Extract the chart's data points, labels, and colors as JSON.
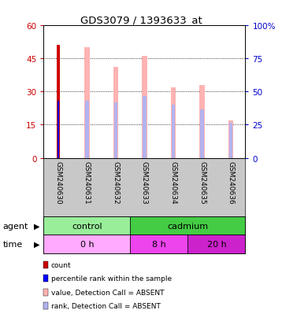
{
  "title": "GDS3079 / 1393633_at",
  "samples": [
    "GSM240630",
    "GSM240631",
    "GSM240632",
    "GSM240633",
    "GSM240634",
    "GSM240635",
    "GSM240636"
  ],
  "count_values": [
    51,
    0,
    0,
    0,
    0,
    0,
    0
  ],
  "percentile_rank_values": [
    26,
    0,
    0,
    0,
    0,
    0,
    0
  ],
  "value_absent": [
    0,
    50,
    41,
    46,
    32,
    33,
    17
  ],
  "rank_absent": [
    0,
    26,
    25,
    28,
    24,
    22,
    16
  ],
  "left_yticks": [
    0,
    15,
    30,
    45,
    60
  ],
  "right_yticks": [
    0,
    25,
    50,
    75,
    100
  ],
  "right_ylabel_color": "#0000cc",
  "left_ylabel_color": "#cc0000",
  "bar_color_count": "#cc0000",
  "bar_color_percentile": "#0000ff",
  "bar_color_value_absent": "#ffb3b3",
  "bar_color_rank_absent": "#b3b3ee",
  "agent_groups": [
    {
      "label": "control",
      "start": 0,
      "end": 3,
      "color": "#99ee99"
    },
    {
      "label": "cadmium",
      "start": 3,
      "end": 7,
      "color": "#44cc44"
    }
  ],
  "time_groups": [
    {
      "label": "0 h",
      "start": 0,
      "end": 3,
      "color": "#ffaaff"
    },
    {
      "label": "8 h",
      "start": 3,
      "end": 5,
      "color": "#ee44ee"
    },
    {
      "label": "20 h",
      "start": 5,
      "end": 7,
      "color": "#cc22cc"
    }
  ],
  "legend_items": [
    {
      "label": "count",
      "color": "#cc0000"
    },
    {
      "label": "percentile rank within the sample",
      "color": "#0000ff"
    },
    {
      "label": "value, Detection Call = ABSENT",
      "color": "#ffb3b3"
    },
    {
      "label": "rank, Detection Call = ABSENT",
      "color": "#b3b3ee"
    }
  ]
}
